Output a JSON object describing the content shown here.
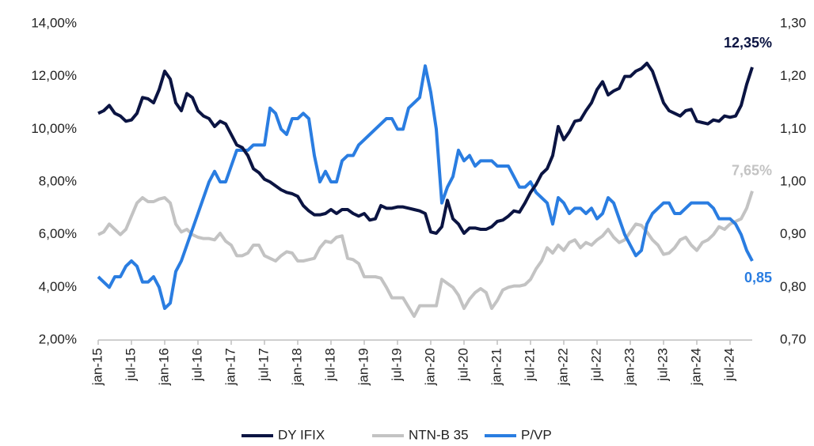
{
  "chart_data": {
    "type": "line",
    "categories": [
      "jan-15",
      null,
      null,
      null,
      null,
      null,
      "jul-15",
      null,
      null,
      null,
      null,
      null,
      "jan-16",
      null,
      null,
      null,
      null,
      null,
      "jul-16",
      null,
      null,
      null,
      null,
      null,
      "jan-17",
      null,
      null,
      null,
      null,
      null,
      "jul-17",
      null,
      null,
      null,
      null,
      null,
      "jan-18",
      null,
      null,
      null,
      null,
      null,
      "jul-18",
      null,
      null,
      null,
      null,
      null,
      "jan-19",
      null,
      null,
      null,
      null,
      null,
      "jul-19",
      null,
      null,
      null,
      null,
      null,
      "jan-20",
      null,
      null,
      null,
      null,
      null,
      "jul-20",
      null,
      null,
      null,
      null,
      null,
      "jan-21",
      null,
      null,
      null,
      null,
      null,
      "jul-21",
      null,
      null,
      null,
      null,
      null,
      "jan-22",
      null,
      null,
      null,
      null,
      null,
      "jul-22",
      null,
      null,
      null,
      null,
      null,
      "jan-23",
      null,
      null,
      null,
      null,
      null,
      "jul-23",
      null,
      null,
      null,
      null,
      null,
      "jan-24",
      null,
      null,
      null,
      null,
      null,
      "jul-24",
      null,
      null,
      null,
      null
    ],
    "series": [
      {
        "name": "DY IFIX",
        "color": "#0b1442",
        "axis": "y",
        "values": [
          10.6,
          10.7,
          10.9,
          10.6,
          10.5,
          10.3,
          10.35,
          10.6,
          11.2,
          11.15,
          11.0,
          11.5,
          12.2,
          11.9,
          11.0,
          10.7,
          11.35,
          11.2,
          10.7,
          10.5,
          10.4,
          10.1,
          10.3,
          10.2,
          9.8,
          9.4,
          9.3,
          9.0,
          8.5,
          8.35,
          8.1,
          8.0,
          7.85,
          7.7,
          7.6,
          7.55,
          7.45,
          7.1,
          6.9,
          6.75,
          6.75,
          6.8,
          6.95,
          6.8,
          6.95,
          6.95,
          6.8,
          6.7,
          6.8,
          6.55,
          6.6,
          7.1,
          7.0,
          7.0,
          7.05,
          7.05,
          7.0,
          6.95,
          6.9,
          6.8,
          6.1,
          6.05,
          6.3,
          7.3,
          6.6,
          6.4,
          6.05,
          6.25,
          6.25,
          6.2,
          6.2,
          6.3,
          6.5,
          6.55,
          6.7,
          6.9,
          6.85,
          7.2,
          7.6,
          7.9,
          8.3,
          8.5,
          9.0,
          10.1,
          9.6,
          9.9,
          10.3,
          10.35,
          10.7,
          11.0,
          11.5,
          11.8,
          11.3,
          11.45,
          11.55,
          12.0,
          12.0,
          12.2,
          12.3,
          12.5,
          12.2,
          11.6,
          11.0,
          10.7,
          10.6,
          10.5,
          10.7,
          10.75,
          10.3,
          10.25,
          10.2,
          10.35,
          10.3,
          10.5,
          10.45,
          10.5,
          10.9,
          11.7,
          12.35
        ],
        "value_labels": [
          null,
          null,
          null,
          null,
          null,
          null,
          null,
          null,
          null,
          null,
          null,
          null,
          null,
          null,
          null,
          null,
          null,
          null,
          null,
          null,
          null,
          null,
          null,
          null,
          null,
          null,
          null,
          null,
          null,
          null,
          null,
          null,
          null,
          null,
          null,
          null,
          null,
          null,
          null,
          null,
          null,
          null,
          null,
          null,
          null,
          null,
          null,
          null,
          null,
          null,
          null,
          null,
          null,
          null,
          null,
          null,
          null,
          null,
          null,
          null,
          null,
          null,
          null,
          null,
          null,
          null,
          null,
          null,
          null,
          null,
          null,
          null,
          null,
          null,
          null,
          null,
          null,
          null,
          null,
          null,
          null,
          null,
          null,
          null,
          null,
          null,
          null,
          null,
          null,
          null,
          null,
          null,
          null,
          null,
          null,
          null,
          null,
          null,
          null,
          null,
          null,
          null,
          null,
          null,
          null,
          null,
          null,
          null,
          null,
          null,
          null,
          null,
          null,
          null,
          null,
          null,
          null,
          null,
          "12,35%"
        ]
      },
      {
        "name": "NTN-B 35",
        "color": "#c3c3c3",
        "axis": "y",
        "values": [
          6.0,
          6.1,
          6.4,
          6.2,
          6.0,
          6.2,
          6.7,
          7.2,
          7.4,
          7.25,
          7.25,
          7.35,
          7.4,
          7.2,
          6.4,
          6.1,
          6.2,
          6.0,
          5.9,
          5.85,
          5.85,
          5.8,
          6.05,
          5.75,
          5.6,
          5.2,
          5.2,
          5.3,
          5.6,
          5.6,
          5.2,
          5.1,
          5.0,
          5.2,
          5.35,
          5.3,
          5.0,
          5.0,
          5.05,
          5.1,
          5.5,
          5.75,
          5.7,
          5.9,
          5.95,
          5.1,
          5.05,
          4.9,
          4.4,
          4.4,
          4.4,
          4.35,
          4.0,
          3.6,
          3.6,
          3.6,
          3.25,
          2.9,
          3.3,
          3.3,
          3.3,
          3.3,
          4.3,
          4.15,
          4.0,
          3.7,
          3.2,
          3.55,
          3.8,
          3.95,
          3.8,
          3.2,
          3.5,
          3.9,
          4.0,
          4.05,
          4.05,
          4.1,
          4.3,
          4.7,
          5.0,
          5.5,
          5.3,
          5.6,
          5.4,
          5.7,
          5.8,
          5.5,
          5.7,
          5.6,
          5.8,
          5.95,
          6.2,
          5.9,
          5.7,
          5.8,
          6.1,
          6.4,
          6.35,
          6.1,
          5.8,
          5.6,
          5.25,
          5.3,
          5.5,
          5.8,
          5.9,
          5.6,
          5.4,
          5.7,
          5.8,
          6.0,
          6.3,
          6.2,
          6.4,
          6.5,
          6.6,
          7.0,
          7.65
        ],
        "value_labels": [
          null,
          null,
          null,
          null,
          null,
          null,
          null,
          null,
          null,
          null,
          null,
          null,
          null,
          null,
          null,
          null,
          null,
          null,
          null,
          null,
          null,
          null,
          null,
          null,
          null,
          null,
          null,
          null,
          null,
          null,
          null,
          null,
          null,
          null,
          null,
          null,
          null,
          null,
          null,
          null,
          null,
          null,
          null,
          null,
          null,
          null,
          null,
          null,
          null,
          null,
          null,
          null,
          null,
          null,
          null,
          null,
          null,
          null,
          null,
          null,
          null,
          null,
          null,
          null,
          null,
          null,
          null,
          null,
          null,
          null,
          null,
          null,
          null,
          null,
          null,
          null,
          null,
          null,
          null,
          null,
          null,
          null,
          null,
          null,
          null,
          null,
          null,
          null,
          null,
          null,
          null,
          null,
          null,
          null,
          null,
          null,
          null,
          null,
          null,
          null,
          null,
          null,
          null,
          null,
          null,
          null,
          null,
          null,
          null,
          null,
          null,
          null,
          null,
          null,
          null,
          null,
          null,
          null,
          "7,65%"
        ]
      },
      {
        "name": "P/VP",
        "color": "#2a7de1",
        "axis": "y2",
        "values": [
          0.82,
          0.81,
          0.8,
          0.82,
          0.82,
          0.84,
          0.85,
          0.84,
          0.81,
          0.81,
          0.82,
          0.8,
          0.76,
          0.77,
          0.83,
          0.85,
          0.88,
          0.91,
          0.94,
          0.97,
          1.0,
          1.02,
          1.0,
          1.0,
          1.03,
          1.06,
          1.06,
          1.06,
          1.07,
          1.07,
          1.07,
          1.14,
          1.13,
          1.1,
          1.09,
          1.12,
          1.12,
          1.13,
          1.12,
          1.05,
          1.0,
          1.02,
          1.0,
          1.0,
          1.04,
          1.05,
          1.05,
          1.07,
          1.08,
          1.09,
          1.1,
          1.11,
          1.12,
          1.12,
          1.1,
          1.1,
          1.14,
          1.15,
          1.16,
          1.22,
          1.17,
          1.1,
          0.96,
          0.99,
          1.01,
          1.06,
          1.04,
          1.05,
          1.03,
          1.04,
          1.04,
          1.04,
          1.03,
          1.03,
          1.03,
          1.01,
          0.99,
          0.99,
          1.0,
          0.98,
          0.97,
          0.96,
          0.92,
          0.97,
          0.96,
          0.94,
          0.95,
          0.95,
          0.94,
          0.95,
          0.93,
          0.94,
          0.97,
          0.96,
          0.93,
          0.9,
          0.88,
          0.86,
          0.87,
          0.92,
          0.94,
          0.95,
          0.96,
          0.96,
          0.94,
          0.94,
          0.95,
          0.96,
          0.96,
          0.96,
          0.96,
          0.95,
          0.93,
          0.93,
          0.93,
          0.92,
          0.9,
          0.87,
          0.85
        ],
        "value_labels": [
          null,
          null,
          null,
          null,
          null,
          null,
          null,
          null,
          null,
          null,
          null,
          null,
          null,
          null,
          null,
          null,
          null,
          null,
          null,
          null,
          null,
          null,
          null,
          null,
          null,
          null,
          null,
          null,
          null,
          null,
          null,
          null,
          null,
          null,
          null,
          null,
          null,
          null,
          null,
          null,
          null,
          null,
          null,
          null,
          null,
          null,
          null,
          null,
          null,
          null,
          null,
          null,
          null,
          null,
          null,
          null,
          null,
          null,
          null,
          null,
          null,
          null,
          null,
          null,
          null,
          null,
          null,
          null,
          null,
          null,
          null,
          null,
          null,
          null,
          null,
          null,
          null,
          null,
          null,
          null,
          null,
          null,
          null,
          null,
          null,
          null,
          null,
          null,
          null,
          null,
          null,
          null,
          null,
          null,
          null,
          null,
          null,
          null,
          null,
          null,
          null,
          null,
          null,
          null,
          null,
          null,
          null,
          null,
          null,
          null,
          null,
          null,
          null,
          null,
          null,
          null,
          null,
          null,
          "0,85"
        ]
      }
    ],
    "ylim": [
      2,
      14
    ],
    "yticks": [
      {
        "value": 2,
        "label": "2,00%"
      },
      {
        "value": 4,
        "label": "4,00%"
      },
      {
        "value": 6,
        "label": "6,00%"
      },
      {
        "value": 8,
        "label": "8,00%"
      },
      {
        "value": 10,
        "label": "10,00%"
      },
      {
        "value": 12,
        "label": "12,00%"
      },
      {
        "value": 14,
        "label": "14,00%"
      }
    ],
    "y2lim": [
      0.7,
      1.3
    ],
    "y2ticks": [
      {
        "value": 0.7,
        "label": "0,70"
      },
      {
        "value": 0.8,
        "label": "0,80"
      },
      {
        "value": 0.9,
        "label": "0,90"
      },
      {
        "value": 1.0,
        "label": "1,00"
      },
      {
        "value": 1.1,
        "label": "1,10"
      },
      {
        "value": 1.2,
        "label": "1,20"
      },
      {
        "value": 1.3,
        "label": "1,30"
      }
    ],
    "legend": "bottom"
  }
}
